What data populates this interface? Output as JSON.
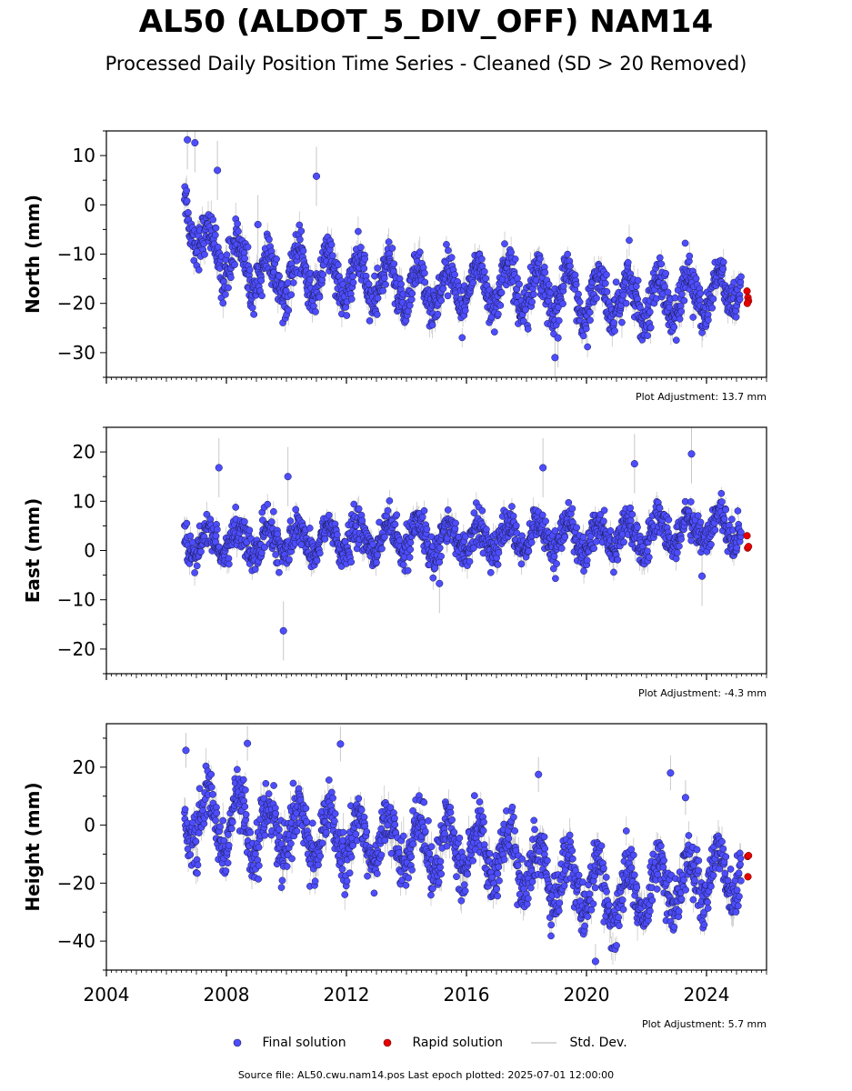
{
  "title": "AL50 (ALDOT_5_DIV_OFF) NAM14",
  "subtitle": "Processed Daily Position Time Series - Cleaned (SD > 20 Removed)",
  "footer": "Source file: AL50.cwu.nam14.pos  Last epoch plotted: 2025-07-01 12:00:00",
  "colors": {
    "final": "#4d4dff",
    "final_edge": "#1a1a4d",
    "rapid": "#e60000",
    "std": "#c8c8c8",
    "axis": "#000000"
  },
  "legend": {
    "final": "Final solution",
    "rapid": "Rapid solution",
    "std": "Std. Dev."
  },
  "chart_data": [
    {
      "type": "scatter",
      "ylabel": "North (mm)",
      "adjustment": "Plot Adjustment: 13.7 mm",
      "xlim": [
        2004.0,
        2026.0
      ],
      "ylim": [
        -35,
        15
      ],
      "yticks": [
        10,
        0,
        -10,
        -20,
        -30
      ],
      "grid": false,
      "final_series": {
        "name": "Final solution",
        "start": 2006.6,
        "end": 2025.15,
        "anchors": [
          [
            2006.6,
            2
          ],
          [
            2007.2,
            -8
          ],
          [
            2008.5,
            -12
          ],
          [
            2009.5,
            -15
          ],
          [
            2011,
            -14
          ],
          [
            2013,
            -16
          ],
          [
            2015,
            -17
          ],
          [
            2017,
            -16
          ],
          [
            2019,
            -18
          ],
          [
            2021,
            -19
          ],
          [
            2023,
            -19
          ],
          [
            2025.15,
            -17
          ]
        ],
        "amplitude": 4.5,
        "noise": 2.2
      },
      "rapid_points": [
        [
          2025.35,
          -17.5
        ],
        [
          2025.38,
          -18.8
        ],
        [
          2025.4,
          -19.5
        ],
        [
          2025.36,
          -20.0
        ]
      ],
      "outliers": [
        [
          2006.7,
          13.2
        ],
        [
          2006.95,
          12.6
        ],
        [
          2007.7,
          7.0
        ],
        [
          2011.0,
          5.8
        ],
        [
          2009.05,
          -4.0
        ],
        [
          2018.95,
          -31.0
        ],
        [
          2019.05,
          -27.0
        ]
      ]
    },
    {
      "type": "scatter",
      "ylabel": "East (mm)",
      "adjustment": "Plot Adjustment: -4.3 mm",
      "xlim": [
        2004.0,
        2026.0
      ],
      "ylim": [
        -25,
        25
      ],
      "yticks": [
        20,
        10,
        0,
        -10,
        -20
      ],
      "grid": false,
      "final_series": {
        "name": "Final solution",
        "start": 2006.6,
        "end": 2025.15,
        "anchors": [
          [
            2006.6,
            1.5
          ],
          [
            2010,
            2
          ],
          [
            2014,
            2.5
          ],
          [
            2018,
            2.5
          ],
          [
            2022,
            3
          ],
          [
            2024,
            5
          ],
          [
            2025.15,
            5
          ]
        ],
        "amplitude": 3.0,
        "noise": 1.8
      },
      "rapid_points": [
        [
          2025.35,
          3.0
        ],
        [
          2025.37,
          0.5
        ],
        [
          2025.4,
          0.8
        ]
      ],
      "outliers": [
        [
          2007.75,
          16.8
        ],
        [
          2010.05,
          15.0
        ],
        [
          2018.55,
          16.8
        ],
        [
          2021.6,
          17.6
        ],
        [
          2023.5,
          19.6
        ],
        [
          2009.9,
          -16.3
        ],
        [
          2015.1,
          -6.7
        ],
        [
          2023.85,
          -5.2
        ]
      ]
    },
    {
      "type": "scatter",
      "ylabel": "Height (mm)",
      "adjustment": "Plot Adjustment: 5.7 mm",
      "xlim": [
        2004.0,
        2026.0
      ],
      "ylim": [
        -50,
        35
      ],
      "yticks": [
        20,
        0,
        -20,
        -40
      ],
      "xticks": [
        "2004",
        "2008",
        "2012",
        "2016",
        "2020",
        "2024"
      ],
      "grid": false,
      "final_series": {
        "name": "Final solution",
        "start": 2006.6,
        "end": 2025.15,
        "anchors": [
          [
            2006.6,
            2
          ],
          [
            2010,
            -2
          ],
          [
            2014,
            -6
          ],
          [
            2017,
            -10
          ],
          [
            2019,
            -18
          ],
          [
            2021,
            -25
          ],
          [
            2023,
            -20
          ],
          [
            2025.15,
            -15
          ]
        ],
        "amplitude": 9.0,
        "noise": 4.5
      },
      "rapid_points": [
        [
          2025.37,
          -10.8
        ],
        [
          2025.4,
          -10.5
        ],
        [
          2025.38,
          -17.8
        ]
      ],
      "outliers": [
        [
          2006.65,
          25.8
        ],
        [
          2008.7,
          28.2
        ],
        [
          2011.8,
          28.0
        ],
        [
          2018.4,
          17.5
        ],
        [
          2022.8,
          18.0
        ],
        [
          2023.3,
          9.5
        ],
        [
          2020.3,
          -47.0
        ]
      ]
    }
  ]
}
